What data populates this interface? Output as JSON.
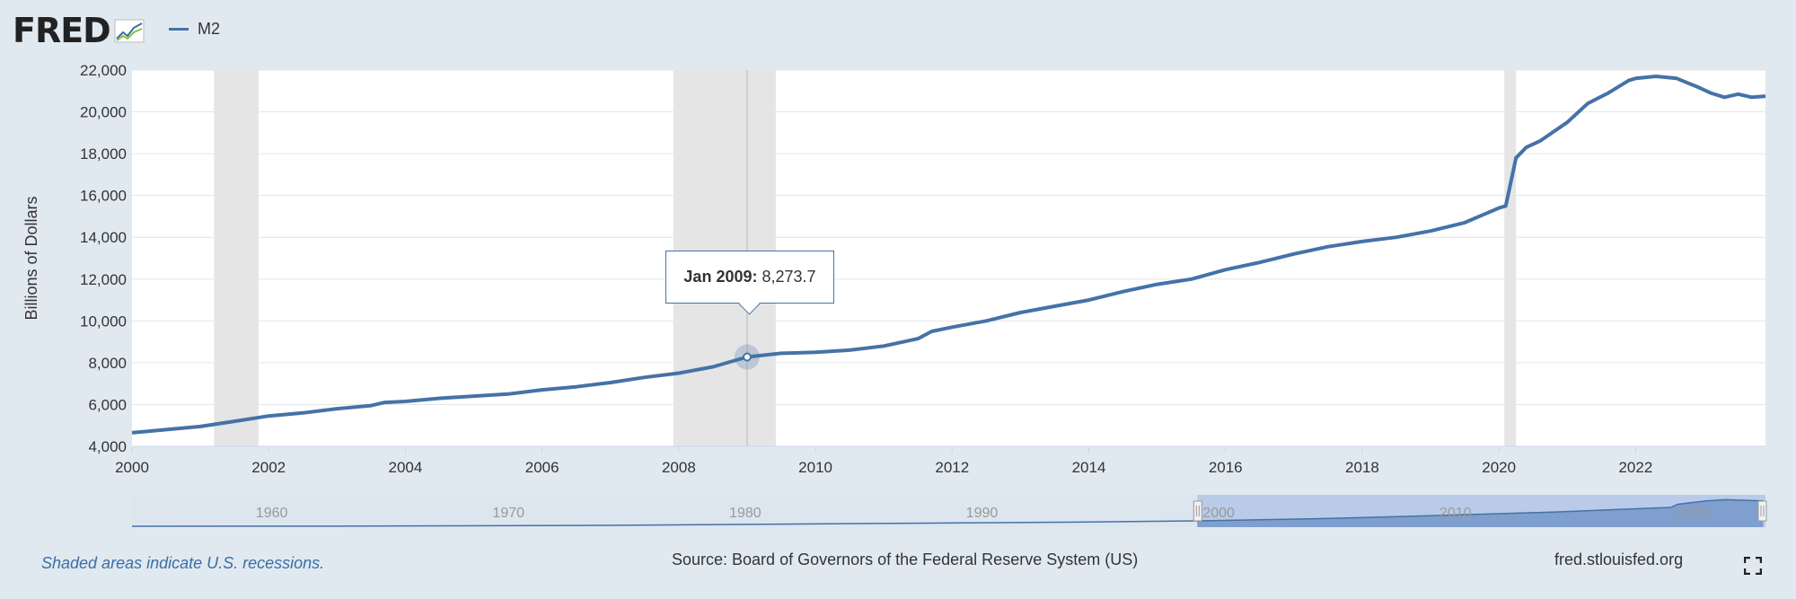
{
  "header": {
    "logo_text": "FRED",
    "legend_label": "M2"
  },
  "tooltip": {
    "date": "Jan 2009:",
    "value": "8,273.7"
  },
  "footer": {
    "note": "Shaded areas indicate U.S. recessions.",
    "source": "Source: Board of Governors of the Federal Reserve System (US)",
    "site": "fred.stlouisfed.org"
  },
  "navigator": {
    "labels": [
      "1960",
      "1970",
      "1980",
      "1990",
      "2000",
      "2010",
      "2020"
    ]
  },
  "colors": {
    "series": "#4572a7",
    "recession": "#e5e5e5",
    "background": "#e1e9f0"
  },
  "icons": [
    "fred-logo-chart-icon",
    "fullscreen-icon",
    "navigator-handle-icon"
  ],
  "chart_data": {
    "type": "line",
    "title": "",
    "xlabel": "",
    "ylabel": "Billions of Dollars",
    "xlim": [
      2000,
      2023.9
    ],
    "ylim": [
      4000,
      22000
    ],
    "x_ticks": [
      "2000",
      "2002",
      "2004",
      "2006",
      "2008",
      "2010",
      "2012",
      "2014",
      "2016",
      "2018",
      "2020",
      "2022"
    ],
    "y_ticks": [
      "4,000",
      "6,000",
      "8,000",
      "10,000",
      "12,000",
      "14,000",
      "16,000",
      "18,000",
      "20,000",
      "22,000"
    ],
    "grid": true,
    "legend": "top-left",
    "recessions": [
      [
        2001.2,
        2001.85
      ],
      [
        2007.92,
        2009.42
      ],
      [
        2020.08,
        2020.25
      ]
    ],
    "series": [
      {
        "name": "M2",
        "x": [
          2000.0,
          2000.5,
          2001.0,
          2001.5,
          2002.0,
          2002.5,
          2003.0,
          2003.5,
          2003.7,
          2004.0,
          2004.5,
          2005.0,
          2005.5,
          2006.0,
          2006.5,
          2007.0,
          2007.5,
          2008.0,
          2008.5,
          2009.0,
          2009.5,
          2010.0,
          2010.5,
          2011.0,
          2011.5,
          2011.7,
          2012.0,
          2012.5,
          2013.0,
          2013.5,
          2014.0,
          2014.5,
          2015.0,
          2015.5,
          2016.0,
          2016.5,
          2017.0,
          2017.5,
          2018.0,
          2018.5,
          2019.0,
          2019.5,
          2020.0,
          2020.1,
          2020.25,
          2020.4,
          2020.6,
          2021.0,
          2021.3,
          2021.6,
          2021.9,
          2022.0,
          2022.3,
          2022.6,
          2022.9,
          2023.1,
          2023.3,
          2023.5,
          2023.7,
          2023.9
        ],
        "values": [
          4650,
          4800,
          4950,
          5200,
          5450,
          5600,
          5800,
          5950,
          6100,
          6150,
          6300,
          6400,
          6500,
          6700,
          6850,
          7050,
          7300,
          7500,
          7800,
          8274,
          8450,
          8500,
          8600,
          8800,
          9150,
          9500,
          9700,
          10000,
          10400,
          10700,
          11000,
          11400,
          11750,
          12000,
          12450,
          12800,
          13200,
          13550,
          13800,
          14000,
          14300,
          14700,
          15400,
          15500,
          17800,
          18300,
          18600,
          19500,
          20400,
          20900,
          21500,
          21600,
          21700,
          21600,
          21200,
          20900,
          20700,
          20850,
          20700,
          20750
        ]
      }
    ],
    "highlight": {
      "x": 2009.0,
      "y": 8273.7
    }
  }
}
